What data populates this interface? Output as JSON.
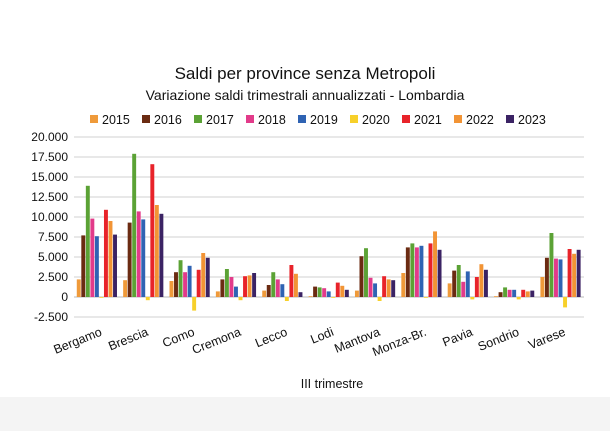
{
  "chart_data": {
    "type": "bar",
    "title": "Saldi per province senza Metropoli",
    "subtitle": "Variazione saldi trimestrali annualizzati - Lombardia",
    "xlabel": "III trimestre",
    "ylabel": "",
    "ylim": [
      -2500,
      20000
    ],
    "yticks": [
      -2500,
      0,
      2500,
      5000,
      7500,
      10000,
      12500,
      15000,
      17500,
      20000
    ],
    "ytick_labels": [
      "-2.500",
      "0",
      "2.500",
      "5.000",
      "7.500",
      "10.000",
      "12.500",
      "15.000",
      "17.500",
      "20.000"
    ],
    "grid": true,
    "legend_position": "top",
    "categories": [
      "Bergamo",
      "Brescia",
      "Como",
      "Cremona",
      "Lecco",
      "Lodi",
      "Mantova",
      "Monza-Br.",
      "Pavia",
      "Sondrio",
      "Varese"
    ],
    "series": [
      {
        "name": "2015",
        "color": "#ef9a3a",
        "values": [
          2200,
          2100,
          2000,
          700,
          800,
          100,
          800,
          3000,
          1700,
          100,
          2500
        ]
      },
      {
        "name": "2016",
        "color": "#6b2b12",
        "values": [
          7700,
          9300,
          3100,
          2200,
          1500,
          1300,
          5100,
          6200,
          3300,
          600,
          4900
        ]
      },
      {
        "name": "2017",
        "color": "#5ba235",
        "values": [
          13900,
          17900,
          4600,
          3500,
          3100,
          1200,
          6100,
          6700,
          4000,
          1200,
          8000
        ]
      },
      {
        "name": "2018",
        "color": "#e23b8a",
        "values": [
          9800,
          10700,
          3100,
          2500,
          2200,
          1100,
          2400,
          6200,
          1900,
          900,
          4800
        ]
      },
      {
        "name": "2019",
        "color": "#2f63b3",
        "values": [
          7600,
          9700,
          3900,
          1300,
          1600,
          700,
          1700,
          6400,
          3200,
          900,
          4700
        ]
      },
      {
        "name": "2020",
        "color": "#f7d02a",
        "values": [
          -100,
          -400,
          -1700,
          -400,
          -500,
          -100,
          -500,
          -100,
          -300,
          -300,
          -1300
        ]
      },
      {
        "name": "2021",
        "color": "#e8232a",
        "values": [
          10900,
          16600,
          3400,
          2600,
          4000,
          1800,
          2600,
          6700,
          2500,
          900,
          6000
        ]
      },
      {
        "name": "2022",
        "color": "#f29435",
        "values": [
          9500,
          11500,
          5500,
          2700,
          2900,
          1400,
          2200,
          8200,
          4100,
          700,
          5400
        ]
      },
      {
        "name": "2023",
        "color": "#3b2364",
        "values": [
          7800,
          10400,
          4900,
          3000,
          600,
          900,
          2100,
          5900,
          3400,
          800,
          5900
        ]
      }
    ]
  }
}
